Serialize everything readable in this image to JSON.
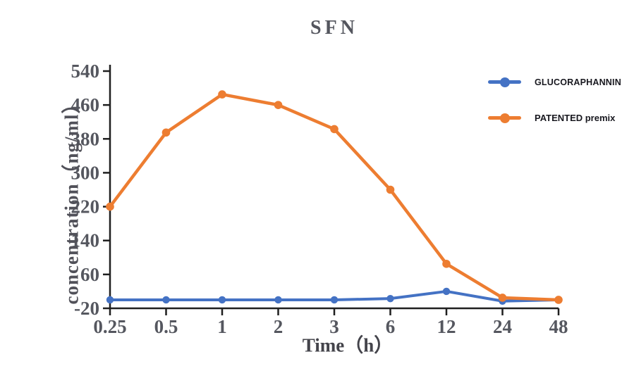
{
  "chart_data": {
    "type": "line",
    "title": "SFN",
    "xlabel": "Time（h）",
    "ylabel": "concentration（ng/ml）",
    "categories": [
      "0.25",
      "0.5",
      "1",
      "2",
      "3",
      "6",
      "12",
      "24",
      "48"
    ],
    "yticks": [
      -20,
      60,
      140,
      220,
      300,
      380,
      460,
      540
    ],
    "ylim": [
      -20,
      540
    ],
    "grid": false,
    "legend_position": "right",
    "axis_color": "#1f1f1f",
    "tick_text_color": "#55575f",
    "series": [
      {
        "name": "GLUCORAPHANNIN",
        "color": "#4472C4",
        "values": [
          0,
          0,
          0,
          0,
          0,
          3,
          20,
          -3,
          0
        ]
      },
      {
        "name": "PATENTED premix",
        "color": "#ED7D31",
        "values": [
          220,
          395,
          485,
          460,
          403,
          260,
          85,
          5,
          0
        ]
      }
    ]
  }
}
